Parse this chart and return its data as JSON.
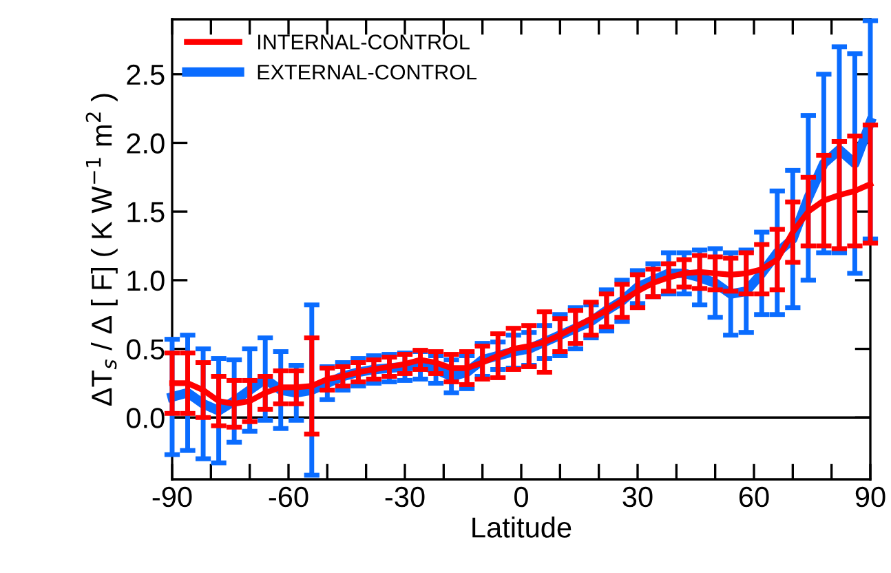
{
  "chart_data": {
    "type": "line",
    "xlabel": "Latitude",
    "ylabel": "ΔT$_{s}$ / Δ [ F] ( K W$^{−1}$ m$^{2}$ )",
    "x": [
      -90,
      -86,
      -82,
      -78,
      -74,
      -70,
      -66,
      -62,
      -58,
      -54,
      -50,
      -46,
      -42,
      -38,
      -34,
      -30,
      -26,
      -22,
      -18,
      -14,
      -10,
      -6,
      -2,
      2,
      6,
      10,
      14,
      18,
      22,
      26,
      30,
      34,
      38,
      42,
      46,
      50,
      54,
      58,
      62,
      66,
      70,
      74,
      78,
      82,
      86,
      90
    ],
    "series": [
      {
        "name": "INTERNAL-CONTROL",
        "color": "#ff0000",
        "values": [
          0.25,
          0.25,
          0.2,
          0.12,
          0.1,
          0.12,
          0.18,
          0.22,
          0.22,
          0.23,
          0.28,
          0.3,
          0.33,
          0.35,
          0.37,
          0.39,
          0.42,
          0.4,
          0.36,
          0.36,
          0.4,
          0.45,
          0.5,
          0.52,
          0.55,
          0.6,
          0.66,
          0.72,
          0.78,
          0.85,
          0.92,
          0.98,
          1.02,
          1.05,
          1.06,
          1.05,
          1.04,
          1.05,
          1.08,
          1.15,
          1.35,
          1.5,
          1.58,
          1.62,
          1.65,
          1.7
        ],
        "errors": [
          0.22,
          0.22,
          0.2,
          0.18,
          0.17,
          0.15,
          0.12,
          0.12,
          0.12,
          0.35,
          0.08,
          0.07,
          0.07,
          0.07,
          0.07,
          0.07,
          0.07,
          0.08,
          0.1,
          0.12,
          0.12,
          0.16,
          0.15,
          0.15,
          0.22,
          0.12,
          0.12,
          0.12,
          0.12,
          0.12,
          0.12,
          0.1,
          0.1,
          0.1,
          0.12,
          0.12,
          0.12,
          0.15,
          0.18,
          0.22,
          0.22,
          0.25,
          0.33,
          0.39,
          0.4,
          0.43
        ]
      },
      {
        "name": "EXTERNAL-CONTROL",
        "color": "#0a6cff",
        "values": [
          0.15,
          0.18,
          0.1,
          0.05,
          0.12,
          0.2,
          0.28,
          0.2,
          0.18,
          0.2,
          0.25,
          0.3,
          0.33,
          0.35,
          0.36,
          0.37,
          0.38,
          0.35,
          0.3,
          0.33,
          0.42,
          0.45,
          0.48,
          0.5,
          0.55,
          0.6,
          0.65,
          0.7,
          0.78,
          0.85,
          0.95,
          1.0,
          1.05,
          1.05,
          1.02,
          0.98,
          0.9,
          0.92,
          1.05,
          1.2,
          1.3,
          1.6,
          1.85,
          1.95,
          1.85,
          2.15
        ],
        "errors": [
          0.42,
          0.42,
          0.4,
          0.38,
          0.3,
          0.3,
          0.3,
          0.28,
          0.2,
          0.62,
          0.12,
          0.1,
          0.1,
          0.1,
          0.1,
          0.1,
          0.1,
          0.1,
          0.12,
          0.12,
          0.12,
          0.1,
          0.12,
          0.12,
          0.12,
          0.15,
          0.15,
          0.12,
          0.15,
          0.15,
          0.12,
          0.12,
          0.15,
          0.15,
          0.2,
          0.25,
          0.3,
          0.3,
          0.3,
          0.45,
          0.5,
          0.6,
          0.65,
          0.75,
          0.8,
          [
            1.3,
            2.89
          ]
        ]
      }
    ],
    "xlim": [
      -90,
      90
    ],
    "xticks": [
      -90,
      {
        "value": -80,
        "label": null
      },
      {
        "value": -70,
        "label": null
      },
      -60,
      {
        "value": -50,
        "label": null
      },
      {
        "value": -40,
        "label": null
      },
      -30,
      {
        "value": -20,
        "label": null
      },
      {
        "value": -10,
        "label": null
      },
      0,
      {
        "value": 10,
        "label": null
      },
      {
        "value": 20,
        "label": null
      },
      30,
      {
        "value": 40,
        "label": null
      },
      {
        "value": 50,
        "label": null
      },
      60,
      {
        "value": 70,
        "label": null
      },
      {
        "value": 80,
        "label": null
      },
      90
    ],
    "ylim": [
      -0.45,
      2.9
    ],
    "yticks": [
      {
        "value": 0,
        "label": "0.0"
      },
      0.5,
      {
        "value": 1,
        "label": "1.0"
      },
      1.5,
      {
        "value": 2,
        "label": "2.0"
      },
      2.5
    ],
    "ref_lines": [
      {
        "axis": "y",
        "value": 0,
        "color": "#000000"
      }
    ],
    "legend": "top left",
    "grid": false
  }
}
